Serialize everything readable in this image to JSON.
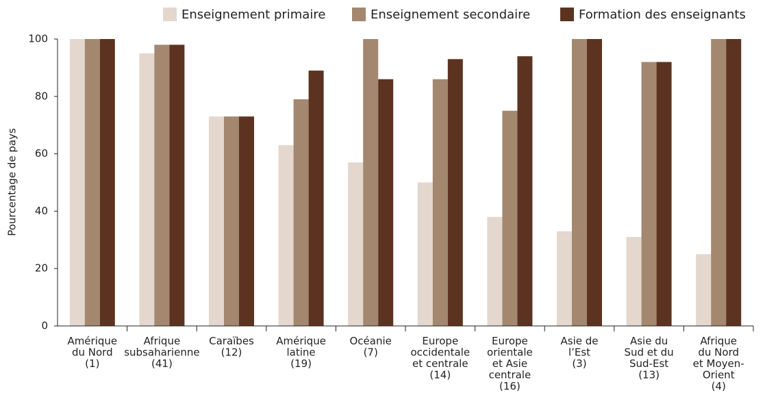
{
  "chart_data": {
    "type": "bar",
    "y_label": "Pourcentage de pays",
    "categories": [
      [
        "Amérique",
        "du Nord",
        "(1)"
      ],
      [
        "Afrique",
        "subsaharienne",
        "(41)"
      ],
      [
        "Caraïbes",
        "(12)"
      ],
      [
        "Amérique",
        "latine",
        "(19)"
      ],
      [
        "Océanie",
        "(7)"
      ],
      [
        "Europe",
        "occidentale",
        "et centrale",
        "(14)"
      ],
      [
        "Europe",
        "orientale",
        "et Asie",
        "centrale",
        "(16)"
      ],
      [
        "Asie de",
        "l’Est",
        "(3)"
      ],
      [
        "Asie du",
        "Sud et du",
        "Sud-Est",
        "(13)"
      ],
      [
        "Afrique",
        "du Nord",
        "et Moyen-",
        "Orient",
        "(4)"
      ]
    ],
    "series": [
      {
        "name": "Enseignement primaire",
        "color": "#e3d7ce",
        "values": [
          100,
          95,
          73,
          63,
          57,
          50,
          38,
          33,
          31,
          25
        ]
      },
      {
        "name": "Enseignement secondaire",
        "color": "#a4876f",
        "values": [
          100,
          98,
          73,
          79,
          100,
          86,
          75,
          100,
          92,
          100
        ]
      },
      {
        "name": "Formation des enseignants",
        "color": "#5c3321",
        "values": [
          100,
          98,
          73,
          89,
          86,
          93,
          94,
          100,
          92,
          100
        ]
      }
    ],
    "ylim": [
      0,
      100
    ],
    "yticks": [
      0,
      20,
      40,
      60,
      80,
      100
    ],
    "grid": false
  }
}
